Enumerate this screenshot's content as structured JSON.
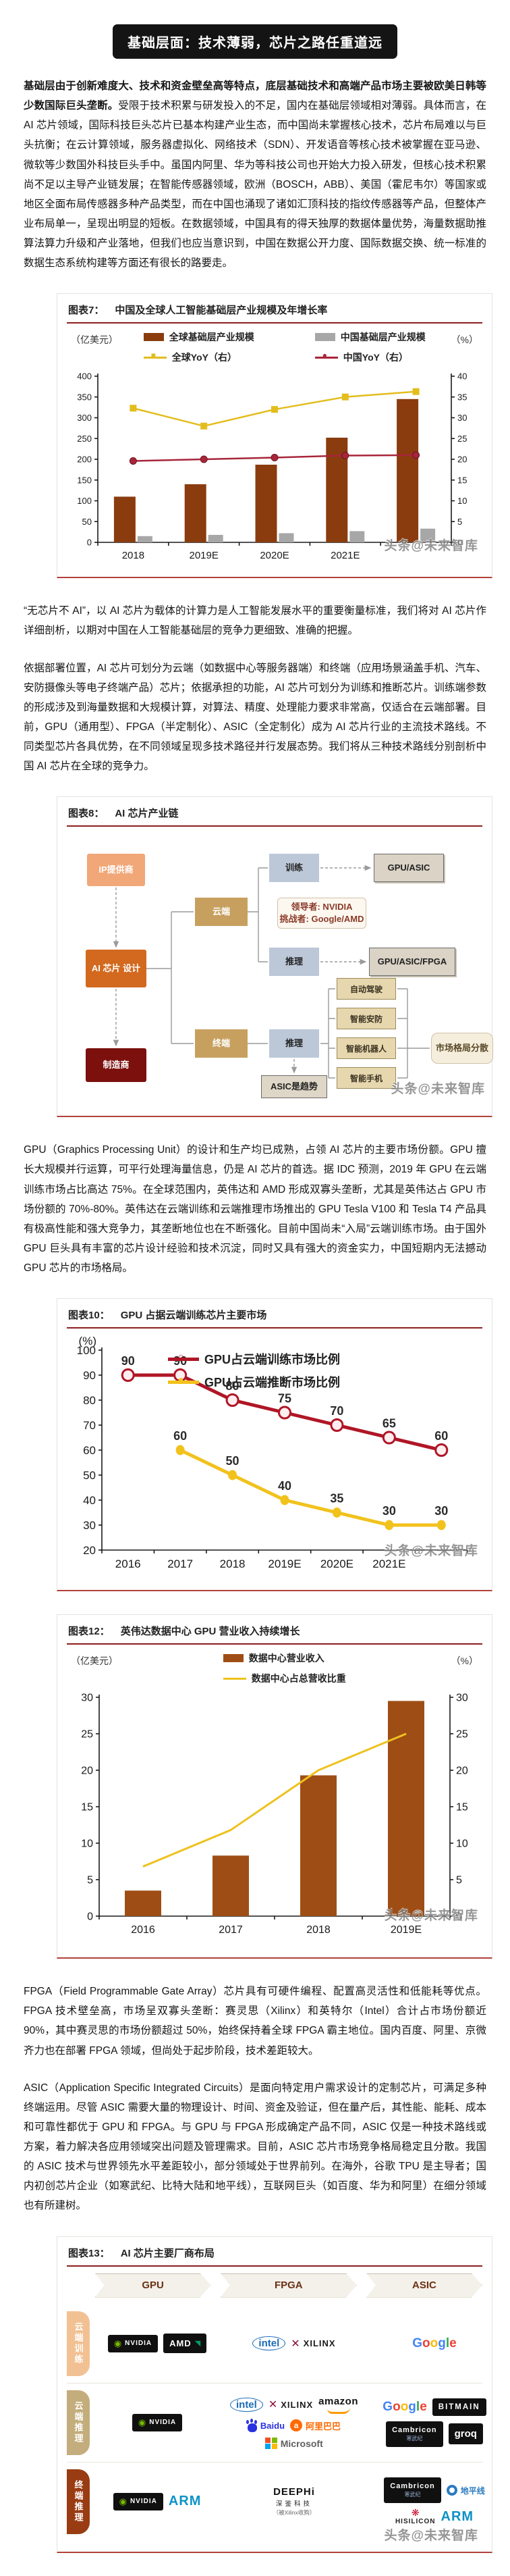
{
  "page": {
    "title_banner": "基础层面：技术薄弱，芯片之路任重道远",
    "watermark": "头条@未来智库"
  },
  "paragraphs": {
    "p1_bold": "基础层由于创新难度大、技术和资金壁垒高等特点，底层基础技术和高端产品市场主要被欧美日韩等少数国际巨头垄断。",
    "p1_rest": "受限于技术积累与研发投入的不足，国内在基础层领域相对薄弱。具体而言，在 AI 芯片领域，国际科技巨头芯片已基本构建产业生态，而中国尚未掌握核心技术，芯片布局难以与巨头抗衡；在云计算领域，服务器虚拟化、网络技术（SDN）、开发语音等核心技术被掌握在亚马逊、微软等少数国外科技巨头手中。虽国内阿里、华为等科技公司也开始大力投入研发，但核心技术积累尚不足以主导产业链发展；在智能传感器领域，欧洲（BOSCH，ABB）、美国（霍尼韦尔）等国家或地区全面布局传感器多种产品类型，而在中国也涌现了诸如汇顶科技的指纹传感器等产品，但整体产业布局单一，呈现出明显的短板。在数据领域，中国具有的得天独厚的数据体量优势，海量数据助推算法算力升级和产业落地，但我们也应当意识到，中国在数据公开力度、国际数据交换、统一标准的数据生态系统构建等方面还有很长的路要走。",
    "p2": "“无芯片不 AI”，以 AI 芯片为载体的计算力是人工智能发展水平的重要衡量标准，我们将对 AI 芯片作详细剖析，以期对中国在人工智能基础层的竞争力更细致、准确的把握。",
    "p3": "依据部署位置，AI 芯片可划分为云端（如数据中心等服务器端）和终端（应用场景涵盖手机、汽车、安防摄像头等电子终端产品）芯片；依据承担的功能，AI 芯片可划分为训练和推断芯片。训练端参数的形成涉及到海量数据和大规模计算，对算法、精度、处理能力要求非常高，仅适合在云端部署。目前，GPU（通用型）、FPGA（半定制化）、ASIC（全定制化）成为 AI 芯片行业的主流技术路线。不同类型芯片各具优势，在不同领域呈现多技术路径并行发展态势。我们将从三种技术路线分别剖析中国 AI 芯片在全球的竞争力。",
    "p4": "GPU（Graphics Processing Unit）的设计和生产均已成熟，占领 AI 芯片的主要市场份额。GPU 擅长大规模并行运算，可平行处理海量信息，仍是 AI 芯片的首选。据 IDC 预测，2019 年 GPU 在云端训练市场占比高达 75%。在全球范围内，英伟达和 AMD 形成双寡头垄断，尤其是英伟达占 GPU 市场份额的 70%-80%。英伟达在云端训练和云端推理市场推出的 GPU Tesla V100 和 Tesla T4 产品具有极高性能和强大竞争力，其垄断地位也在不断强化。目前中国尚未“入局”云端训练市场。由于国外 GPU 巨头具有丰富的芯片设计经验和技术沉淀，同时又具有强大的资金实力，中国短期内无法撼动 GPU 芯片的市场格局。",
    "p5": "FPGA（Field Programmable Gate Array）芯片具有可硬件编程、配置高灵活性和低能耗等优点。FPGA 技术壁垒高，市场呈双寡头垄断：赛灵思（Xilinx）和英特尔（Intel）合计占市场份额近 90%，其中赛灵思的市场份额超过 50%，始终保持着全球 FPGA 霸主地位。国内百度、阿里、京微齐力也在部署 FPGA 领域，但尚处于起步阶段，技术差距较大。",
    "p6": "ASIC（Application Specific Integrated Circuits）是面向特定用户需求设计的定制芯片，可满足多种终端运用。尽管 ASIC 需要大量的物理设计、时间、资金及验证，但在量产后，其性能、能耗、成本和可靠性都优于 GPU 和 FPGA。与 GPU 与 FPGA 形成确定产品不同，ASIC 仅是一种技术路线或方案，着力解决各应用领域突出问题及管理需求。目前，ASIC 芯片市场竞争格局稳定且分散。我国的 ASIC 技术与世界领先水平差距较小，部分领域处于世界前列。在海外，谷歌 TPU 是主导者；国内初创芯片企业（如寒武纪、比特大陆和地平线），互联网巨头（如百度、华为和阿里）在细分领域也有所建树。"
  },
  "chart_data": [
    {
      "id": "figure7",
      "type": "bar",
      "label": "图表7：",
      "title": "中国及全球人工智能基础层产业规模及年增长率",
      "left_axis": {
        "unit": "（亿美元）",
        "min": 0,
        "max": 400,
        "step": 50
      },
      "right_axis": {
        "unit": "（%）",
        "min": 0,
        "max": 40,
        "step": 5
      },
      "categories": [
        "2018",
        "2019E",
        "2020E",
        "2021E",
        "2022E"
      ],
      "last_category_hidden_by_watermark": true,
      "grid": false,
      "legend_position": "top",
      "series": [
        {
          "name": "全球基础层产业规模",
          "kind": "bar",
          "axis": "left",
          "color": "#8a3c0f",
          "values": [
            110,
            140,
            187,
            252,
            345
          ]
        },
        {
          "name": "中国基础层产业规模",
          "kind": "bar",
          "axis": "left",
          "color": "#a7a7a7",
          "values": [
            15,
            18,
            22,
            27,
            33
          ]
        },
        {
          "name": "全球YoY（右）",
          "kind": "line",
          "axis": "right",
          "color": "#e3bd1d",
          "marker": "square",
          "values": [
            32.3,
            28,
            32,
            35,
            36.3
          ]
        },
        {
          "name": "中国YoY（右）",
          "kind": "line",
          "axis": "right",
          "color": "#a8263a",
          "marker": "circle",
          "values": [
            19.6,
            20,
            20.4,
            20.9,
            21
          ]
        }
      ]
    },
    {
      "id": "figure10",
      "type": "line",
      "label": "图表10：",
      "title": "GPU 占据云端训练芯片主要市场",
      "left_axis": {
        "unit": "(%)",
        "min": 20,
        "max": 100,
        "step": 10
      },
      "categories": [
        "2016",
        "2017",
        "2018",
        "2019E",
        "2020E",
        "2021E",
        "2022E"
      ],
      "last_category_hidden_by_watermark": true,
      "grid": false,
      "legend_position": "top-inside",
      "series": [
        {
          "name": "GPU占云端训练市场比例",
          "kind": "line",
          "axis": "left",
          "color": "#b01626",
          "marker": "open-circle",
          "show_labels": true,
          "values": [
            90,
            90,
            80,
            75,
            70,
            65,
            60
          ]
        },
        {
          "name": "GPU占云端推断市场比例",
          "kind": "line",
          "axis": "left",
          "color": "#f2c21c",
          "marker": "dot",
          "show_labels": true,
          "values": [
            null,
            60,
            50,
            40,
            35,
            30,
            30
          ]
        }
      ]
    },
    {
      "id": "figure12",
      "type": "bar",
      "label": "图表12：",
      "title": "英伟达数据中心 GPU 营业收入持续增长",
      "left_axis": {
        "unit": "（亿美元）",
        "min": 0,
        "max": 30,
        "step": 5
      },
      "right_axis": {
        "unit": "（%）",
        "min": 0,
        "max": 30,
        "step": 5
      },
      "categories": [
        "2016",
        "2017",
        "2018",
        "2019E"
      ],
      "last_category_hidden_by_watermark": true,
      "grid": false,
      "legend_position": "top",
      "series": [
        {
          "name": "数据中心营业收入",
          "kind": "bar",
          "axis": "left",
          "color": "#9e4e15",
          "values": [
            3.5,
            8.3,
            19.3,
            29.5
          ]
        },
        {
          "name": "数据中心占总营收比重",
          "kind": "line",
          "axis": "right",
          "color": "#eec21f",
          "marker": "none",
          "values": [
            6.8,
            11.8,
            20,
            25
          ]
        }
      ]
    }
  ],
  "figure8": {
    "label": "图表8：",
    "title": "AI 芯片产业链",
    "nodes": {
      "ip": "IP提供商",
      "design": "AI 芯片 设计",
      "mfr": "制造商",
      "cloud": "云端",
      "terminal": "终端",
      "train": "训练",
      "infer_cloud": "推理",
      "infer_term": "推理",
      "chip_train": "GPU/ASIC",
      "chip_infer": "GPU/ASIC/FPGA",
      "note_line1": "领导者: NVIDIA",
      "note_line2": "挑战者: Google/AMD",
      "apps": [
        "自动驾驶",
        "智能安防",
        "智能机器人",
        "智能手机"
      ],
      "market": "市场格局分散",
      "asic_trend": "ASIC是趋势"
    }
  },
  "figure13": {
    "label": "图表13：",
    "title": "AI 芯片主要厂商布局",
    "columns": [
      "GPU",
      "FPGA",
      "ASIC"
    ],
    "rows": [
      {
        "name": "云端训练",
        "cells": [
          [
            "nvidia",
            "amd"
          ],
          [
            "intel",
            "xilinx"
          ],
          [
            "google"
          ]
        ]
      },
      {
        "name": "云端推理",
        "cells": [
          [
            "nvidia"
          ],
          [
            "intel",
            "xilinx",
            "amazon",
            "baidu",
            "alibaba",
            "microsoft"
          ],
          [
            "google",
            "bitmain",
            "cambricon",
            "groq"
          ]
        ]
      },
      {
        "name": "终端推理",
        "cells": [
          [
            "nvidia",
            "arm"
          ],
          [
            "deephi"
          ],
          [
            "cambricon",
            "horizon",
            "hisilicon",
            "arm"
          ]
        ]
      }
    ],
    "logos": {
      "nvidia": "NVIDIA",
      "amd": "AMD",
      "intel": "intel",
      "xilinx": "XILINX",
      "google": "Google",
      "amazon": "amazon",
      "baidu": "Baidu",
      "alibaba": "阿里巴巴",
      "microsoft": "Microsoft",
      "bitmain": "BITMAIN",
      "cambricon": "Cambricon",
      "cambricon_cn": "寒武纪",
      "groq": "groq",
      "deephi": "DEEPHi",
      "deephi_cn": "深鉴科技",
      "deephi_note": "（被Xilinx收购）",
      "arm": "ARM",
      "horizon": "地平线",
      "hisilicon": "HISILICON"
    }
  }
}
